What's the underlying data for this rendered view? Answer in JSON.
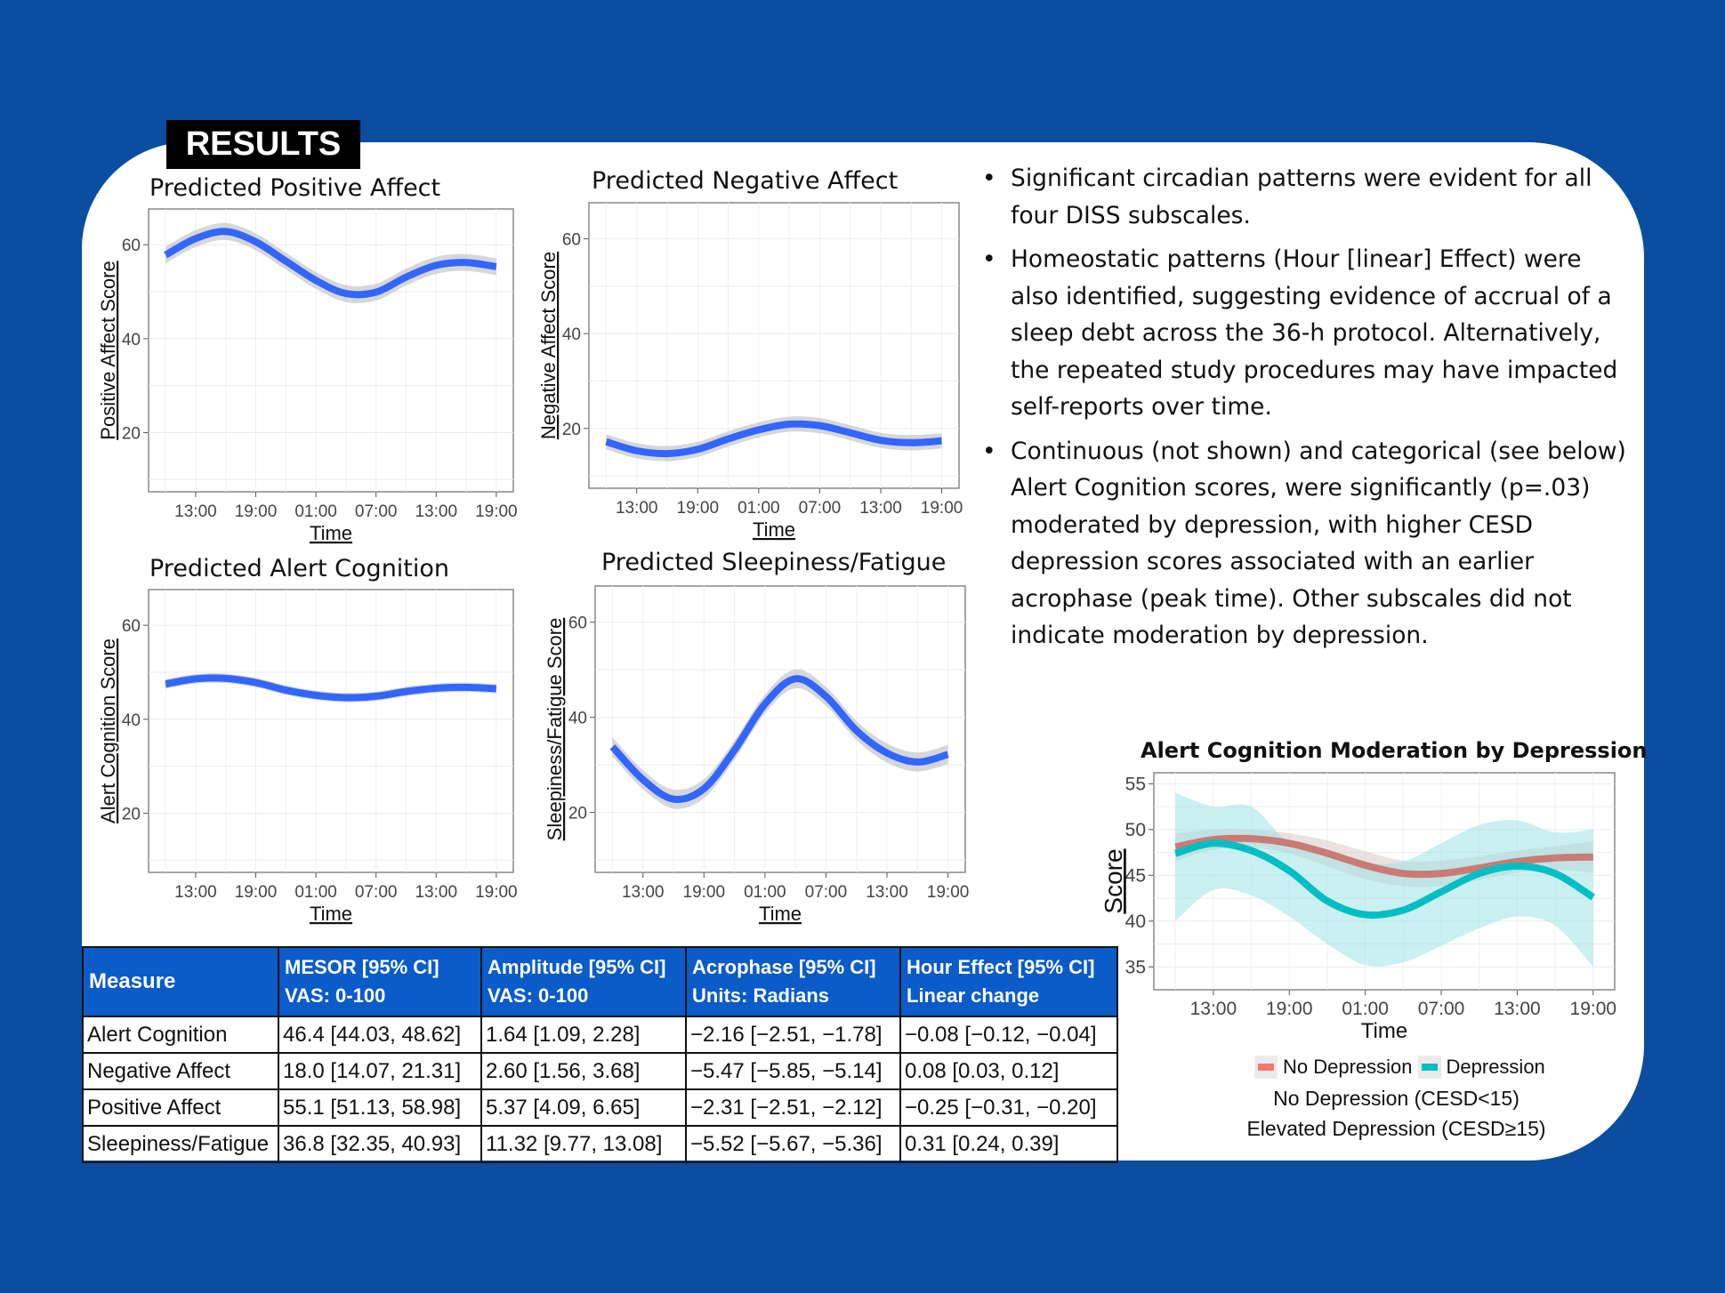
{
  "header": {
    "badge": "RESULTS"
  },
  "colors": {
    "background": "#0b4d9e",
    "line": "#3366ff",
    "ribbon": "#c8c8c8",
    "no_depression": "#c97b76",
    "depression": "#00bfc4",
    "table_header": "#0b5bc8"
  },
  "bullets": [
    "Significant circadian patterns were evident for all four DISS subscales.",
    "Homeostatic patterns (Hour [linear] Effect) were also identified, suggesting evidence of accrual of a sleep debt across the 36-h protocol. Alternatively, the repeated study procedures may have impacted self-reports  over time.",
    "Continuous (not shown) and categorical (see below) Alert Cognition scores, were significantly (p=.03) moderated by depression, with higher CESD depression scores associated with an earlier acrophase (peak time). Other subscales did not indicate moderation by depression."
  ],
  "chart_data": [
    {
      "type": "line",
      "title": "Predicted Positive Affect",
      "xlabel": "Time",
      "ylabel": "Positive Affect Score",
      "ylim": [
        7.4,
        67.6
      ],
      "yticks": [
        20,
        40,
        60
      ],
      "xticks": [
        "13:00",
        "19:00",
        "01:00",
        "07:00",
        "13:00",
        "19:00"
      ],
      "grid": true,
      "x": [
        "10:00",
        "13:00",
        "16:00",
        "19:00",
        "22:00",
        "01:00",
        "04:00",
        "07:00",
        "10:00",
        "13:00",
        "16:00",
        "19:00"
      ],
      "series": [
        {
          "values": [
            57.8,
            61.3,
            62.8,
            60.6,
            56.5,
            52.4,
            49.6,
            49.9,
            53.1,
            55.6,
            56.2,
            55.3
          ],
          "ci_halfwidth": 1.8
        }
      ]
    },
    {
      "type": "line",
      "title": "Predicted Negative Affect",
      "xlabel": "Time",
      "ylabel": "Negative Affect Score",
      "ylim": [
        7.4,
        67.6
      ],
      "yticks": [
        20,
        40,
        60
      ],
      "xticks": [
        "13:00",
        "19:00",
        "01:00",
        "07:00",
        "13:00",
        "19:00"
      ],
      "grid": true,
      "x": [
        "10:00",
        "13:00",
        "16:00",
        "19:00",
        "22:00",
        "01:00",
        "04:00",
        "07:00",
        "10:00",
        "13:00",
        "16:00",
        "19:00"
      ],
      "series": [
        {
          "values": [
            17.2,
            15.3,
            14.7,
            15.6,
            17.8,
            19.7,
            20.9,
            20.6,
            19.1,
            17.5,
            17.0,
            17.4
          ],
          "ci_halfwidth": 1.6
        }
      ]
    },
    {
      "type": "line",
      "title": "Predicted Alert Cognition",
      "xlabel": "Time",
      "ylabel": "Alert Cognition Score",
      "ylim": [
        7.4,
        67.6
      ],
      "yticks": [
        20,
        40,
        60
      ],
      "xticks": [
        "13:00",
        "19:00",
        "01:00",
        "07:00",
        "13:00",
        "19:00"
      ],
      "grid": true,
      "x": [
        "10:00",
        "13:00",
        "16:00",
        "19:00",
        "22:00",
        "01:00",
        "04:00",
        "07:00",
        "10:00",
        "13:00",
        "16:00",
        "19:00"
      ],
      "series": [
        {
          "values": [
            47.5,
            48.6,
            48.7,
            47.8,
            46.2,
            45.1,
            44.6,
            44.9,
            45.9,
            46.6,
            46.8,
            46.5
          ],
          "ci_halfwidth": 1.0
        }
      ]
    },
    {
      "type": "line",
      "title": "Predicted Sleepiness/Fatigue",
      "xlabel": "Time",
      "ylabel": "Sleepiness/Fatigue Score",
      "ylim": [
        7.4,
        67.6
      ],
      "yticks": [
        20,
        40,
        60
      ],
      "xticks": [
        "13:00",
        "19:00",
        "01:00",
        "07:00",
        "13:00",
        "19:00"
      ],
      "grid": true,
      "x": [
        "10:00",
        "13:00",
        "16:00",
        "19:00",
        "22:00",
        "01:00",
        "04:00",
        "07:00",
        "10:00",
        "13:00",
        "16:00",
        "19:00"
      ],
      "series": [
        {
          "values": [
            33.8,
            26.9,
            22.8,
            25.0,
            33.1,
            42.8,
            48.1,
            44.4,
            37.2,
            32.5,
            30.6,
            32.2
          ],
          "ci_halfwidth": 2.0
        }
      ]
    },
    {
      "type": "line",
      "title": "Alert Cognition Moderation by Depression",
      "xlabel": "Time",
      "ylabel": "Score",
      "ylim": [
        32.5,
        56.2
      ],
      "yticks": [
        35,
        40,
        45,
        50,
        55
      ],
      "xticks": [
        "13:00",
        "19:00",
        "01:00",
        "07:00",
        "13:00",
        "19:00"
      ],
      "grid": true,
      "legend": "bottom",
      "x": [
        "10:00",
        "13:00",
        "16:00",
        "19:00",
        "22:00",
        "01:00",
        "04:00",
        "07:00",
        "10:00",
        "13:00",
        "16:00",
        "19:00"
      ],
      "series": [
        {
          "name": "No Depression",
          "values": [
            48.1,
            48.9,
            49.0,
            48.5,
            47.4,
            46.1,
            45.2,
            45.2,
            45.8,
            46.5,
            46.9,
            47.0
          ],
          "lower": [
            46.6,
            47.8,
            48.0,
            47.4,
            46.0,
            44.6,
            43.8,
            43.8,
            44.5,
            45.3,
            45.6,
            45.3
          ],
          "upper": [
            49.6,
            50.0,
            50.0,
            49.6,
            48.8,
            47.6,
            46.6,
            46.6,
            47.1,
            47.7,
            48.2,
            48.7
          ]
        },
        {
          "name": "Depression",
          "values": [
            47.4,
            48.5,
            47.7,
            45.5,
            42.2,
            40.7,
            41.2,
            43.2,
            45.2,
            46.0,
            45.2,
            42.6
          ],
          "lower": [
            40.0,
            43.4,
            42.8,
            40.5,
            37.5,
            35.2,
            35.5,
            37.3,
            39.2,
            40.5,
            39.5,
            35.0
          ],
          "upper": [
            54.0,
            52.5,
            52.5,
            48.5,
            47.0,
            46.3,
            46.5,
            48.5,
            50.5,
            51.0,
            49.7,
            50.0
          ]
        }
      ],
      "notes": [
        "No Depression (CESD<15)",
        "Elevated Depression (CESD≥15)"
      ]
    }
  ],
  "table": {
    "headers": [
      {
        "line1": "Measure",
        "line2": ""
      },
      {
        "line1": "MESOR [95% CI]",
        "line2": "VAS: 0-100"
      },
      {
        "line1": "Amplitude [95% CI]",
        "line2": "VAS: 0-100"
      },
      {
        "line1": "Acrophase [95% CI]",
        "line2": "Units: Radians"
      },
      {
        "line1": "Hour Effect [95% CI]",
        "line2": "Linear change"
      }
    ],
    "rows": [
      [
        "Alert Cognition",
        "46.4 [44.03, 48.62]",
        "1.64 [1.09, 2.28]",
        "−2.16 [−2.51, −1.78]",
        "−0.08 [−0.12, −0.04]"
      ],
      [
        "Negative Affect",
        "18.0 [14.07, 21.31]",
        "2.60 [1.56, 3.68]",
        "−5.47 [−5.85, −5.14]",
        "0.08 [0.03, 0.12]"
      ],
      [
        "Positive Affect",
        "55.1 [51.13, 58.98]",
        "5.37 [4.09, 6.65]",
        "−2.31 [−2.51, −2.12]",
        "−0.25 [−0.31, −0.20]"
      ],
      [
        "Sleepiness/Fatigue",
        "36.8 [32.35, 40.93]",
        "11.32 [9.77, 13.08]",
        "−5.52 [−5.67, −5.36]",
        "0.31 [0.24, 0.39]"
      ]
    ]
  }
}
